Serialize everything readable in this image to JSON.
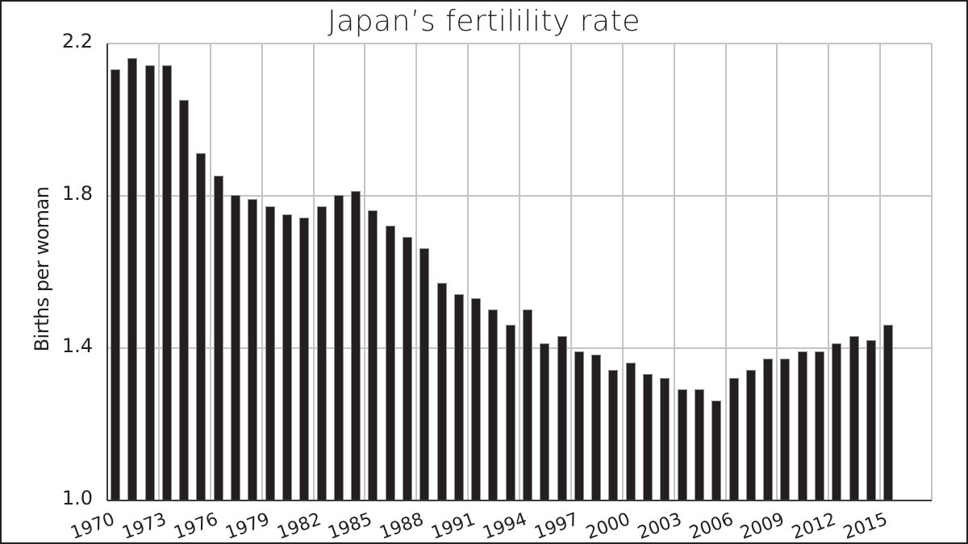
{
  "chart_data": {
    "type": "bar",
    "title": "Japan’s fertilility rate",
    "xlabel": "",
    "ylabel": "Births per woman",
    "ylim": [
      1.0,
      2.2
    ],
    "yticks": [
      "1.0",
      "1.4",
      "1.8",
      "2.2"
    ],
    "xticks": [
      "1970",
      "1973",
      "1976",
      "1979",
      "1982",
      "1985",
      "1988",
      "1991",
      "1994",
      "1997",
      "2000",
      "2003",
      "2006",
      "2009",
      "2012",
      "2015"
    ],
    "grid": true,
    "legend": null,
    "bar_color": "#231f20",
    "grid_color": "#c4c4c4",
    "categories": [
      "1970",
      "1971",
      "1972",
      "1973",
      "1974",
      "1975",
      "1976",
      "1977",
      "1978",
      "1979",
      "1980",
      "1981",
      "1982",
      "1983",
      "1984",
      "1985",
      "1986",
      "1987",
      "1988",
      "1989",
      "1990",
      "1991",
      "1992",
      "1993",
      "1994",
      "1995",
      "1996",
      "1997",
      "1998",
      "1999",
      "2000",
      "2001",
      "2002",
      "2003",
      "2004",
      "2005",
      "2006",
      "2007",
      "2008",
      "2009",
      "2010",
      "2011",
      "2012",
      "2013",
      "2014",
      "2015"
    ],
    "values": [
      2.13,
      2.16,
      2.14,
      2.14,
      2.05,
      1.91,
      1.85,
      1.8,
      1.79,
      1.77,
      1.75,
      1.74,
      1.77,
      1.8,
      1.81,
      1.76,
      1.72,
      1.69,
      1.66,
      1.57,
      1.54,
      1.53,
      1.5,
      1.46,
      1.5,
      1.41,
      1.43,
      1.39,
      1.38,
      1.34,
      1.36,
      1.33,
      1.32,
      1.29,
      1.29,
      1.26,
      1.32,
      1.34,
      1.37,
      1.37,
      1.39,
      1.39,
      1.41,
      1.43,
      1.42,
      1.46
    ]
  }
}
